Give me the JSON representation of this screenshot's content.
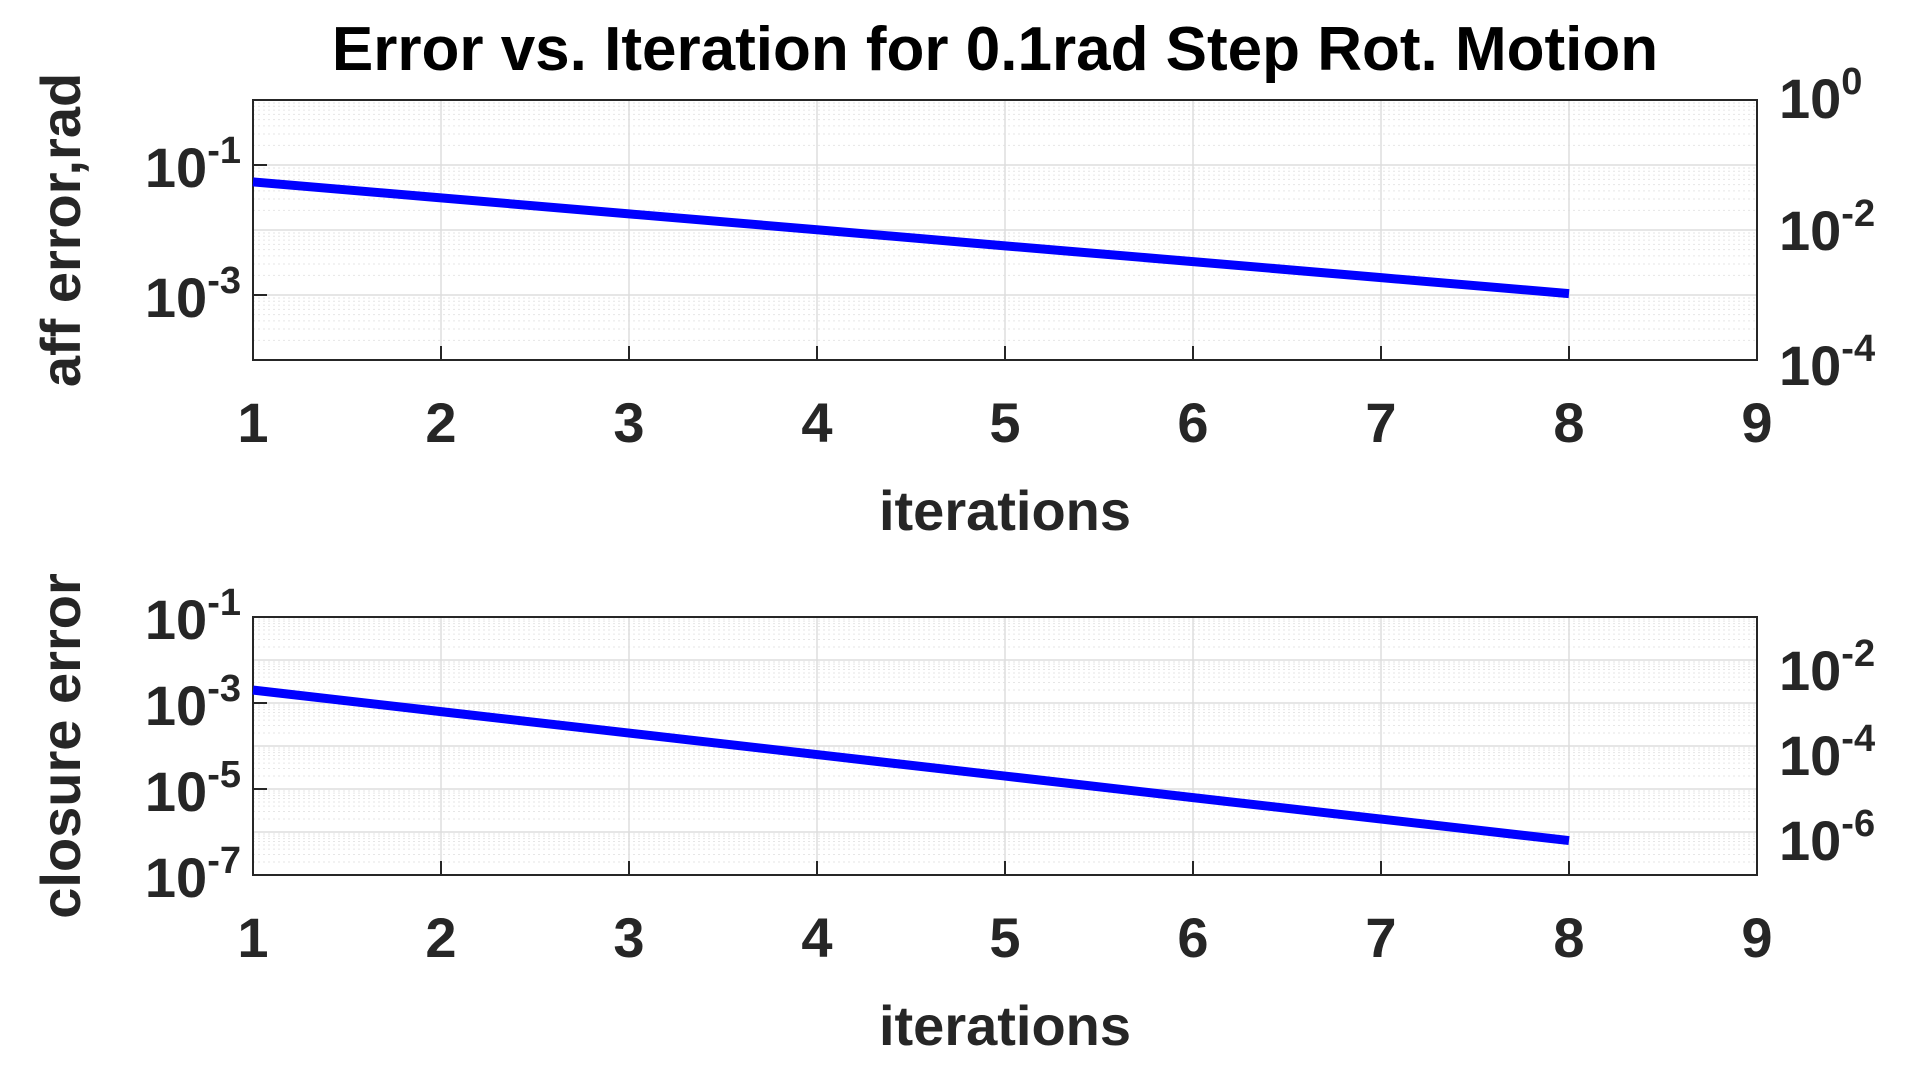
{
  "title": "Error vs. Iteration for 0.1rad Step Rot. Motion",
  "colors": {
    "series": "#0000ff",
    "axis": "#262626",
    "grid": "#dddddd",
    "background": "#ffffff"
  },
  "chart_data": [
    {
      "type": "line",
      "xlabel": "iterations",
      "ylabel": "aff error,rad",
      "x_ticks": [
        "1",
        "2",
        "3",
        "4",
        "5",
        "6",
        "7",
        "8",
        "9"
      ],
      "xlim": [
        1,
        9
      ],
      "yscale": "log",
      "ylim": [
        0.0001,
        1
      ],
      "y_ticks_left": [
        {
          "base": "10",
          "exp": "-1"
        },
        {
          "base": "10",
          "exp": "-3"
        }
      ],
      "y_ticks_right": [
        {
          "base": "10",
          "exp": "0"
        },
        {
          "base": "10",
          "exp": "-2"
        },
        {
          "base": "10",
          "exp": "-4"
        }
      ],
      "grid": true,
      "series": [
        {
          "x": [
            1,
            2,
            3,
            4,
            5,
            6,
            7,
            8
          ],
          "y": [
            0.055,
            0.0312,
            0.0177,
            0.0101,
            0.0057,
            0.00326,
            0.00185,
            0.00105
          ]
        }
      ]
    },
    {
      "type": "line",
      "xlabel": "iterations",
      "ylabel": "closure error",
      "x_ticks": [
        "1",
        "2",
        "3",
        "4",
        "5",
        "6",
        "7",
        "8",
        "9"
      ],
      "xlim": [
        1,
        9
      ],
      "yscale": "log",
      "ylim": [
        1e-07,
        0.1
      ],
      "y_ticks_left": [
        {
          "base": "10",
          "exp": "-1"
        },
        {
          "base": "10",
          "exp": "-3"
        },
        {
          "base": "10",
          "exp": "-5"
        },
        {
          "base": "10",
          "exp": "-7"
        }
      ],
      "y_ticks_right": [
        {
          "base": "10",
          "exp": "-2"
        },
        {
          "base": "10",
          "exp": "-4"
        },
        {
          "base": "10",
          "exp": "-6"
        }
      ],
      "grid": true,
      "series": [
        {
          "x": [
            1,
            2,
            3,
            4,
            5,
            6,
            7,
            8
          ],
          "y": [
            0.002,
            0.00063,
            0.0002,
            6.32e-05,
            2e-05,
            6.3e-06,
            2e-06,
            6.32e-07
          ]
        }
      ]
    }
  ]
}
